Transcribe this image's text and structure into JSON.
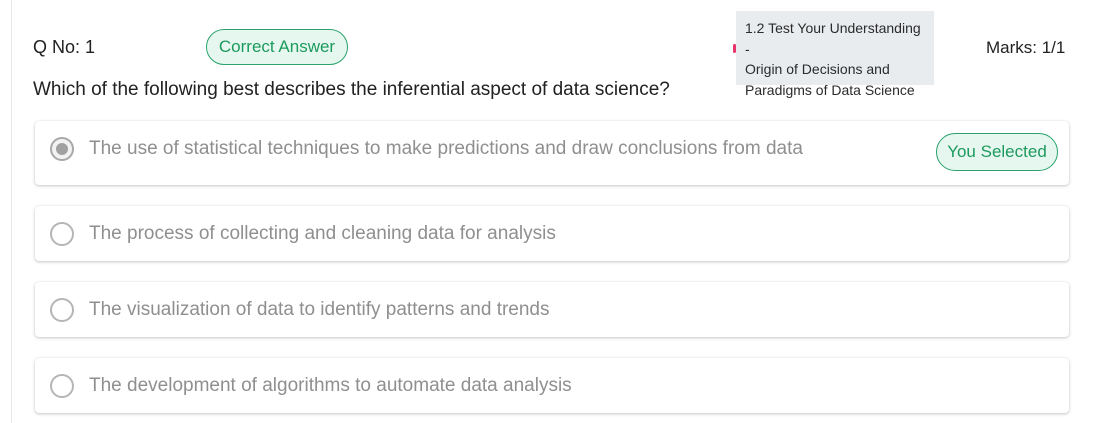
{
  "question": {
    "number_label": "Q No: 1",
    "result_badge": "Correct Answer",
    "topic_lines": [
      "1.2 Test Your Understanding -",
      "Origin of Decisions and",
      "Paradigms of Data Science"
    ],
    "marks": "Marks: 1/1",
    "text": "Which of the following best describes the inferential aspect of data science?"
  },
  "options": [
    {
      "label": "The use of statistical techniques to make predictions and draw conclusions from data",
      "selected": true,
      "badge": "You Selected"
    },
    {
      "label": "The process of collecting and cleaning data for analysis",
      "selected": false
    },
    {
      "label": "The visualization of data to identify patterns and trends",
      "selected": false
    },
    {
      "label": "The development of algorithms to automate data analysis",
      "selected": false
    }
  ],
  "colors": {
    "correct_green": "#1d9a5e",
    "badge_background": "#e6f7ef",
    "topic_background": "#e9ecef",
    "topic_marker": "#e8336b",
    "option_text": "#8f8f8f"
  }
}
